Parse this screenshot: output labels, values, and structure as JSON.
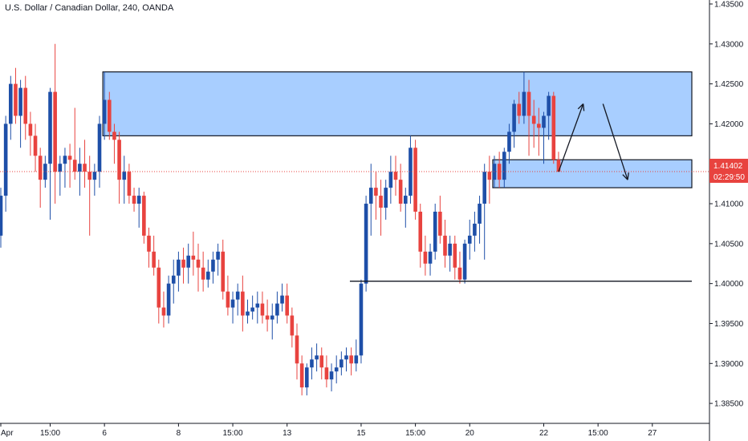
{
  "header": {
    "title": "U.S. Dollar / Canadian Dollar, 240, OANDA"
  },
  "colors": {
    "up": "#1E4FA8",
    "down": "#E8433F",
    "zone_fill": "#A8CEFF",
    "zone_stroke": "#131722",
    "price_line": "#E8433F",
    "axis": "#131722"
  },
  "price_badge": {
    "price": "1.41402",
    "countdown": "02:29:50"
  },
  "chart_data": {
    "type": "candlestick",
    "symbol": "U.S. Dollar / Canadian Dollar",
    "interval": "240",
    "source": "OANDA",
    "y_ticks": [
      "1.43500",
      "1.43000",
      "1.42500",
      "1.42000",
      "1.41500",
      "1.41000",
      "1.40500",
      "1.40000",
      "1.39500",
      "1.39000",
      "1.38500"
    ],
    "ylim": [
      1.3825,
      1.4355
    ],
    "x_ticks": [
      {
        "label": "Apr",
        "idx": 0
      },
      {
        "label": "15:00",
        "idx": 10
      },
      {
        "label": "6",
        "idx": 21
      },
      {
        "label": "8",
        "idx": 36
      },
      {
        "label": "15:00",
        "idx": 47
      },
      {
        "label": "13",
        "idx": 58
      },
      {
        "label": "15",
        "idx": 73
      },
      {
        "label": "15:00",
        "idx": 84
      },
      {
        "label": "20",
        "idx": 95
      },
      {
        "label": "22",
        "idx": 110
      },
      {
        "label": "15:00",
        "idx": 121
      },
      {
        "label": "27",
        "idx": 132
      }
    ],
    "current_price": 1.41402,
    "candles": [
      [
        1.406,
        1.412,
        1.4045,
        1.411
      ],
      [
        1.411,
        1.421,
        1.409,
        1.42
      ],
      [
        1.42,
        1.426,
        1.418,
        1.425
      ],
      [
        1.425,
        1.427,
        1.42,
        1.421
      ],
      [
        1.421,
        1.4255,
        1.417,
        1.4245
      ],
      [
        1.4245,
        1.426,
        1.418,
        1.42
      ],
      [
        1.42,
        1.4215,
        1.416,
        1.4185
      ],
      [
        1.4185,
        1.42,
        1.414,
        1.416
      ],
      [
        1.416,
        1.417,
        1.4095,
        1.413
      ],
      [
        1.413,
        1.416,
        1.412,
        1.415
      ],
      [
        1.415,
        1.4245,
        1.408,
        1.424
      ],
      [
        1.424,
        1.43,
        1.41,
        1.414
      ],
      [
        1.414,
        1.416,
        1.411,
        1.415
      ],
      [
        1.415,
        1.417,
        1.412,
        1.416
      ],
      [
        1.416,
        1.4175,
        1.412,
        1.4155
      ],
      [
        1.4155,
        1.422,
        1.413,
        1.414
      ],
      [
        1.414,
        1.417,
        1.411,
        1.415
      ],
      [
        1.415,
        1.418,
        1.412,
        1.414
      ],
      [
        1.414,
        1.416,
        1.406,
        1.413
      ],
      [
        1.413,
        1.415,
        1.411,
        1.414
      ],
      [
        1.414,
        1.421,
        1.412,
        1.42
      ],
      [
        1.42,
        1.4265,
        1.418,
        1.423
      ],
      [
        1.423,
        1.424,
        1.418,
        1.419
      ],
      [
        1.419,
        1.42,
        1.415,
        1.418
      ],
      [
        1.418,
        1.419,
        1.41,
        1.413
      ],
      [
        1.413,
        1.416,
        1.41,
        1.414
      ],
      [
        1.414,
        1.415,
        1.41,
        1.411
      ],
      [
        1.411,
        1.412,
        1.409,
        1.41
      ],
      [
        1.41,
        1.412,
        1.407,
        1.411
      ],
      [
        1.411,
        1.4115,
        1.405,
        1.406
      ],
      [
        1.406,
        1.407,
        1.402,
        1.404
      ],
      [
        1.404,
        1.406,
        1.401,
        1.402
      ],
      [
        1.402,
        1.403,
        1.395,
        1.397
      ],
      [
        1.397,
        1.399,
        1.3945,
        1.396
      ],
      [
        1.396,
        1.401,
        1.395,
        1.4
      ],
      [
        1.4,
        1.403,
        1.3975,
        1.401
      ],
      [
        1.401,
        1.404,
        1.399,
        1.403
      ],
      [
        1.403,
        1.4045,
        1.4,
        1.402
      ],
      [
        1.402,
        1.405,
        1.4,
        1.4035
      ],
      [
        1.4035,
        1.4065,
        1.401,
        1.403
      ],
      [
        1.403,
        1.405,
        1.399,
        1.402
      ],
      [
        1.402,
        1.404,
        1.399,
        1.4005
      ],
      [
        1.4005,
        1.403,
        1.3995,
        1.4015
      ],
      [
        1.4015,
        1.404,
        1.4,
        1.403
      ],
      [
        1.403,
        1.405,
        1.401,
        1.404
      ],
      [
        1.404,
        1.4055,
        1.398,
        1.399
      ],
      [
        1.399,
        1.401,
        1.396,
        1.397
      ],
      [
        1.397,
        1.399,
        1.395,
        1.398
      ],
      [
        1.398,
        1.4,
        1.396,
        1.399
      ],
      [
        1.399,
        1.401,
        1.394,
        1.396
      ],
      [
        1.396,
        1.398,
        1.395,
        1.3965
      ],
      [
        1.3965,
        1.3985,
        1.3955,
        1.397
      ],
      [
        1.397,
        1.399,
        1.395,
        1.3975
      ],
      [
        1.3975,
        1.399,
        1.395,
        1.396
      ],
      [
        1.396,
        1.398,
        1.394,
        1.3955
      ],
      [
        1.3955,
        1.3975,
        1.393,
        1.396
      ],
      [
        1.396,
        1.399,
        1.395,
        1.3975
      ],
      [
        1.3975,
        1.4,
        1.3965,
        1.3985
      ],
      [
        1.3985,
        1.4,
        1.395,
        1.396
      ],
      [
        1.396,
        1.397,
        1.392,
        1.3935
      ],
      [
        1.3935,
        1.395,
        1.388,
        1.39
      ],
      [
        1.39,
        1.391,
        1.386,
        1.387
      ],
      [
        1.387,
        1.39,
        1.386,
        1.3895
      ],
      [
        1.3895,
        1.392,
        1.388,
        1.3905
      ],
      [
        1.3905,
        1.3925,
        1.389,
        1.391
      ],
      [
        1.391,
        1.392,
        1.388,
        1.3895
      ],
      [
        1.3895,
        1.391,
        1.387,
        1.388
      ],
      [
        1.388,
        1.39,
        1.3865,
        1.389
      ],
      [
        1.389,
        1.391,
        1.3875,
        1.3895
      ],
      [
        1.3895,
        1.3915,
        1.3885,
        1.3905
      ],
      [
        1.3905,
        1.392,
        1.389,
        1.391
      ],
      [
        1.391,
        1.392,
        1.3885,
        1.39
      ],
      [
        1.39,
        1.393,
        1.389,
        1.391
      ],
      [
        1.391,
        1.4005,
        1.39,
        1.4
      ],
      [
        1.4,
        1.411,
        1.399,
        1.41
      ],
      [
        1.41,
        1.415,
        1.406,
        1.412
      ],
      [
        1.412,
        1.414,
        1.408,
        1.411
      ],
      [
        1.411,
        1.413,
        1.406,
        1.4095
      ],
      [
        1.4095,
        1.413,
        1.408,
        1.412
      ],
      [
        1.412,
        1.416,
        1.41,
        1.414
      ],
      [
        1.414,
        1.416,
        1.411,
        1.413
      ],
      [
        1.413,
        1.415,
        1.409,
        1.41
      ],
      [
        1.41,
        1.412,
        1.407,
        1.411
      ],
      [
        1.411,
        1.4185,
        1.41,
        1.417
      ],
      [
        1.417,
        1.418,
        1.408,
        1.409
      ],
      [
        1.409,
        1.41,
        1.402,
        1.404
      ],
      [
        1.404,
        1.406,
        1.401,
        1.4025
      ],
      [
        1.4025,
        1.405,
        1.401,
        1.404
      ],
      [
        1.404,
        1.41,
        1.403,
        1.409
      ],
      [
        1.409,
        1.411,
        1.405,
        1.406
      ],
      [
        1.406,
        1.408,
        1.402,
        1.4035
      ],
      [
        1.4035,
        1.406,
        1.4015,
        1.405
      ],
      [
        1.405,
        1.406,
        1.4005,
        1.402
      ],
      [
        1.402,
        1.404,
        1.4,
        1.4005
      ],
      [
        1.4005,
        1.4055,
        1.4,
        1.405
      ],
      [
        1.405,
        1.408,
        1.403,
        1.406
      ],
      [
        1.406,
        1.409,
        1.404,
        1.4075
      ],
      [
        1.4075,
        1.411,
        1.405,
        1.41
      ],
      [
        1.41,
        1.415,
        1.403,
        1.414
      ],
      [
        1.414,
        1.416,
        1.41,
        1.413
      ],
      [
        1.413,
        1.416,
        1.412,
        1.415
      ],
      [
        1.415,
        1.4165,
        1.412,
        1.413
      ],
      [
        1.413,
        1.417,
        1.412,
        1.4165
      ],
      [
        1.4165,
        1.42,
        1.415,
        1.419
      ],
      [
        1.419,
        1.423,
        1.417,
        1.4225
      ],
      [
        1.4225,
        1.424,
        1.42,
        1.421
      ],
      [
        1.421,
        1.4265,
        1.42,
        1.424
      ],
      [
        1.424,
        1.4255,
        1.416,
        1.421
      ],
      [
        1.421,
        1.423,
        1.417,
        1.42
      ],
      [
        1.42,
        1.422,
        1.416,
        1.4195
      ],
      [
        1.4195,
        1.4215,
        1.415,
        1.421
      ],
      [
        1.421,
        1.424,
        1.418,
        1.4235
      ],
      [
        1.4235,
        1.424,
        1.415,
        1.4155
      ],
      [
        1.4155,
        1.4165,
        1.414,
        1.414
      ]
    ],
    "zones": [
      {
        "top": 1.4265,
        "bottom": 1.4185,
        "from_idx": 21,
        "to_idx": 140
      },
      {
        "top": 1.4155,
        "bottom": 1.412,
        "from_idx": 100,
        "to_idx": 140
      }
    ],
    "support_level": {
      "price": 1.4003,
      "from_idx": 73,
      "to_idx": 140
    },
    "projection": [
      [
        113,
        1.414
      ],
      [
        118,
        1.4225
      ],
      [
        122,
        1.4225
      ],
      [
        127,
        1.413
      ]
    ]
  }
}
